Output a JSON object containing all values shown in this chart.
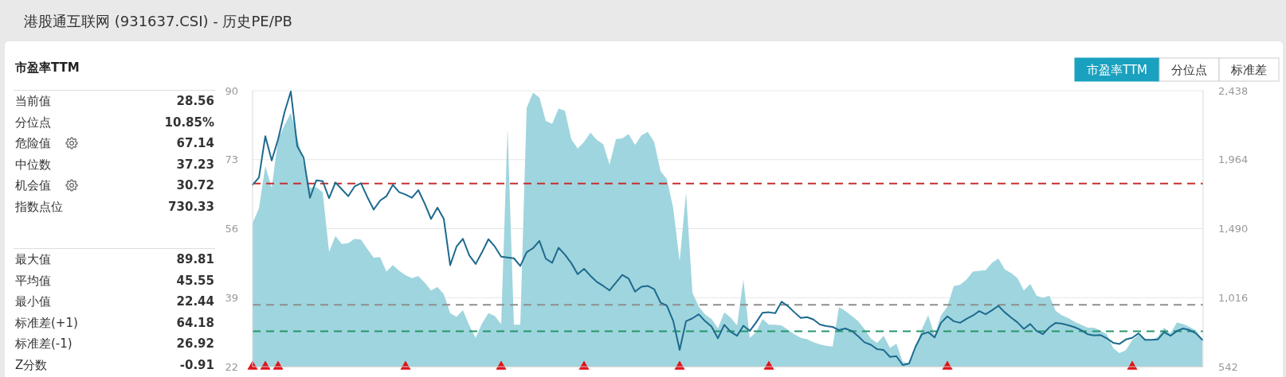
{
  "chart_data": [
    {
      "type": "other",
      "title": "港股通互联网 (931637.CSI) - 历史PE/PB",
      "subtitle": "市盈率TTM",
      "annotations": [
        "当前值",
        "28.56",
        "分位点",
        "10.85%",
        "危险值",
        "67.14",
        "中位数",
        "37.23",
        "机会值",
        "30.72",
        "指数点位",
        "730.33",
        "最大值",
        "89.81",
        "平均值",
        "45.55",
        "最小值",
        "22.44",
        "标准差(+1)",
        "64.18",
        "标准差(-1)",
        "26.92",
        "Z分数",
        "-0.91"
      ]
    },
    {
      "type": "line",
      "categories": [
        null,
        null,
        null,
        null,
        null,
        null,
        null,
        null,
        null,
        null,
        null,
        null,
        null,
        null,
        null,
        null,
        null,
        null,
        null,
        null,
        null,
        null,
        null,
        null,
        null,
        null,
        null,
        null,
        null,
        null,
        null,
        null,
        null,
        null,
        null,
        null,
        null,
        null,
        null,
        null,
        null,
        null,
        null,
        null,
        null,
        null,
        null,
        null,
        null,
        null,
        null,
        null,
        null,
        null,
        null,
        null,
        null,
        null,
        null,
        null,
        null,
        null,
        null,
        null,
        null,
        null,
        null,
        null,
        null,
        null,
        null,
        null,
        null,
        null,
        null,
        null,
        null,
        null,
        null,
        null,
        null,
        null,
        null,
        null,
        null,
        null,
        null,
        null,
        null,
        null,
        null,
        null,
        null,
        null,
        null,
        null,
        null,
        null,
        null,
        null,
        null,
        null,
        null,
        null,
        null,
        null,
        null,
        null,
        null,
        null,
        null,
        null,
        null,
        null,
        null,
        null,
        null,
        null,
        null,
        null,
        null,
        null,
        null,
        null,
        null,
        null,
        null,
        null,
        null,
        null,
        null,
        null,
        null,
        null,
        null,
        null,
        null,
        null,
        null,
        null,
        null,
        null,
        null,
        null,
        null,
        null,
        null,
        null,
        null,
        null
      ],
      "ylim": [
        22,
        90
      ],
      "yticks": [
        22,
        39,
        56,
        73,
        90
      ],
      "y2lim": [
        542,
        2438
      ],
      "y2ticks": [
        542,
        {
          "value": 1016,
          "label": "1,016"
        },
        {
          "value": 1490,
          "label": "1,490"
        },
        {
          "value": 1964,
          "label": "1,964"
        },
        {
          "value": 2438,
          "label": "2,438"
        }
      ],
      "grid": "y",
      "series": [
        {
          "type": "area",
          "axis": "y2",
          "color": "#9fd5de",
          "values": [
            1530,
            1630,
            1920,
            1770,
            2105,
            2200,
            2285,
            2115,
            1940,
            1770,
            1775,
            1740,
            1330,
            1440,
            1385,
            1390,
            1420,
            1415,
            1350,
            1290,
            1295,
            1195,
            1240,
            1200,
            1170,
            1150,
            1165,
            1120,
            1065,
            1090,
            1040,
            910,
            885,
            930,
            825,
            740,
            840,
            910,
            890,
            835,
            2180,
            830,
            830,
            2320,
            2425,
            2390,
            2230,
            2210,
            2315,
            2300,
            2105,
            2040,
            2085,
            2150,
            2100,
            2070,
            1930,
            2105,
            2110,
            2140,
            2065,
            2130,
            2155,
            2085,
            1885,
            1830,
            1630,
            1265,
            1740,
            1050,
            955,
            900,
            870,
            805,
            915,
            880,
            825,
            1140,
            740,
            780,
            870,
            830,
            830,
            825,
            795,
            765,
            740,
            730,
            710,
            695,
            685,
            680,
            950,
            925,
            890,
            855,
            800,
            735,
            705,
            755,
            670,
            700,
            575,
            565,
            670,
            800,
            895,
            755,
            895,
            955,
            1095,
            1105,
            1140,
            1195,
            1200,
            1205,
            1255,
            1285,
            1210,
            1185,
            1150,
            1065,
            1110,
            1030,
            1015,
            1030,
            925,
            895,
            875,
            850,
            830,
            810,
            810,
            790,
            765,
            670,
            635,
            655,
            725,
            760,
            730,
            725,
            745,
            810,
            770,
            845,
            835,
            815,
            790,
            730
          ]
        },
        {
          "type": "line",
          "color": "#1d6a8e",
          "values": [
            66.8,
            68.6,
            78.8,
            72.8,
            78.0,
            84.6,
            89.8,
            76.4,
            73.5,
            63.6,
            67.9,
            67.7,
            63.5,
            67.4,
            65.7,
            64.0,
            66.4,
            67.2,
            63.8,
            60.7,
            62.9,
            64.0,
            66.8,
            65.0,
            64.4,
            63.6,
            65.5,
            62.2,
            58.4,
            61.2,
            58.4,
            47.0,
            51.6,
            53.5,
            49.4,
            47.3,
            50.2,
            53.4,
            51.6,
            49.1,
            48.9,
            48.7,
            46.8,
            50.2,
            51.2,
            53.0,
            48.6,
            47.6,
            51.3,
            49.6,
            47.5,
            44.8,
            46.1,
            44.4,
            42.9,
            41.9,
            40.8,
            42.7,
            44.6,
            43.7,
            40.5,
            41.7,
            41.9,
            41.1,
            37.8,
            37.0,
            33.2,
            26.1,
            33.2,
            33.9,
            34.9,
            33.2,
            31.9,
            29.0,
            32.3,
            30.6,
            29.6,
            32.1,
            30.8,
            32.9,
            35.3,
            35.4,
            35.2,
            38.0,
            36.9,
            35.4,
            34.0,
            34.2,
            33.6,
            32.4,
            32.0,
            31.8,
            31.0,
            31.4,
            30.8,
            29.5,
            28.0,
            27.4,
            26.3,
            26.1,
            24.4,
            24.6,
            22.4,
            22.8,
            26.9,
            30.0,
            30.5,
            29.2,
            32.8,
            34.4,
            33.2,
            32.8,
            33.8,
            34.6,
            35.7,
            34.9,
            35.9,
            37.0,
            35.4,
            34.1,
            32.9,
            31.3,
            32.5,
            30.8,
            30.0,
            31.7,
            32.8,
            32.6,
            32.2,
            31.7,
            31.0,
            30.0,
            29.7,
            29.8,
            29.0,
            27.9,
            27.6,
            28.7,
            29.1,
            30.2,
            28.6,
            28.6,
            28.7,
            30.5,
            29.6,
            30.8,
            31.4,
            31.0,
            30.2,
            28.6
          ]
        },
        {
          "type": "scatter",
          "marker": "triangle",
          "color": "#e3121b",
          "values": [
            22,
            null,
            22,
            null,
            22,
            null,
            null,
            null,
            null,
            null,
            null,
            null,
            null,
            null,
            null,
            null,
            null,
            null,
            null,
            null,
            null,
            null,
            null,
            null,
            22,
            null,
            null,
            null,
            null,
            null,
            null,
            null,
            null,
            null,
            null,
            null,
            null,
            null,
            null,
            22,
            null,
            null,
            null,
            null,
            null,
            null,
            null,
            null,
            null,
            null,
            null,
            null,
            22,
            null,
            null,
            null,
            null,
            null,
            null,
            null,
            null,
            null,
            null,
            null,
            null,
            null,
            null,
            22,
            null,
            null,
            null,
            null,
            null,
            null,
            null,
            null,
            null,
            null,
            null,
            null,
            null,
            22,
            null,
            null,
            null,
            null,
            null,
            null,
            null,
            null,
            null,
            null,
            null,
            null,
            null,
            null,
            null,
            null,
            null,
            null,
            null,
            null,
            null,
            null,
            null,
            null,
            null,
            null,
            null,
            22,
            null,
            null,
            null,
            null,
            null,
            null,
            null,
            null,
            null,
            null,
            null,
            null,
            null,
            null,
            null,
            null,
            null,
            null,
            null,
            null,
            null,
            null,
            null,
            null,
            null,
            null,
            null,
            null,
            22,
            null,
            null,
            null,
            null,
            null,
            null,
            null,
            null,
            null,
            null,
            null
          ]
        }
      ],
      "ref_lines": [
        {
          "axis": "y",
          "value": 67.14,
          "color": "#c62f2f",
          "line_style": "dashed"
        },
        {
          "axis": "y",
          "value": 37.23,
          "color": "#8e8e8e",
          "line_style": "dashed"
        },
        {
          "axis": "y",
          "value": 30.72,
          "color": "#26966a",
          "line_style": "dashed"
        }
      ],
      "annotations": [
        "市盈率TTM",
        "分位点",
        "标准差"
      ]
    }
  ]
}
